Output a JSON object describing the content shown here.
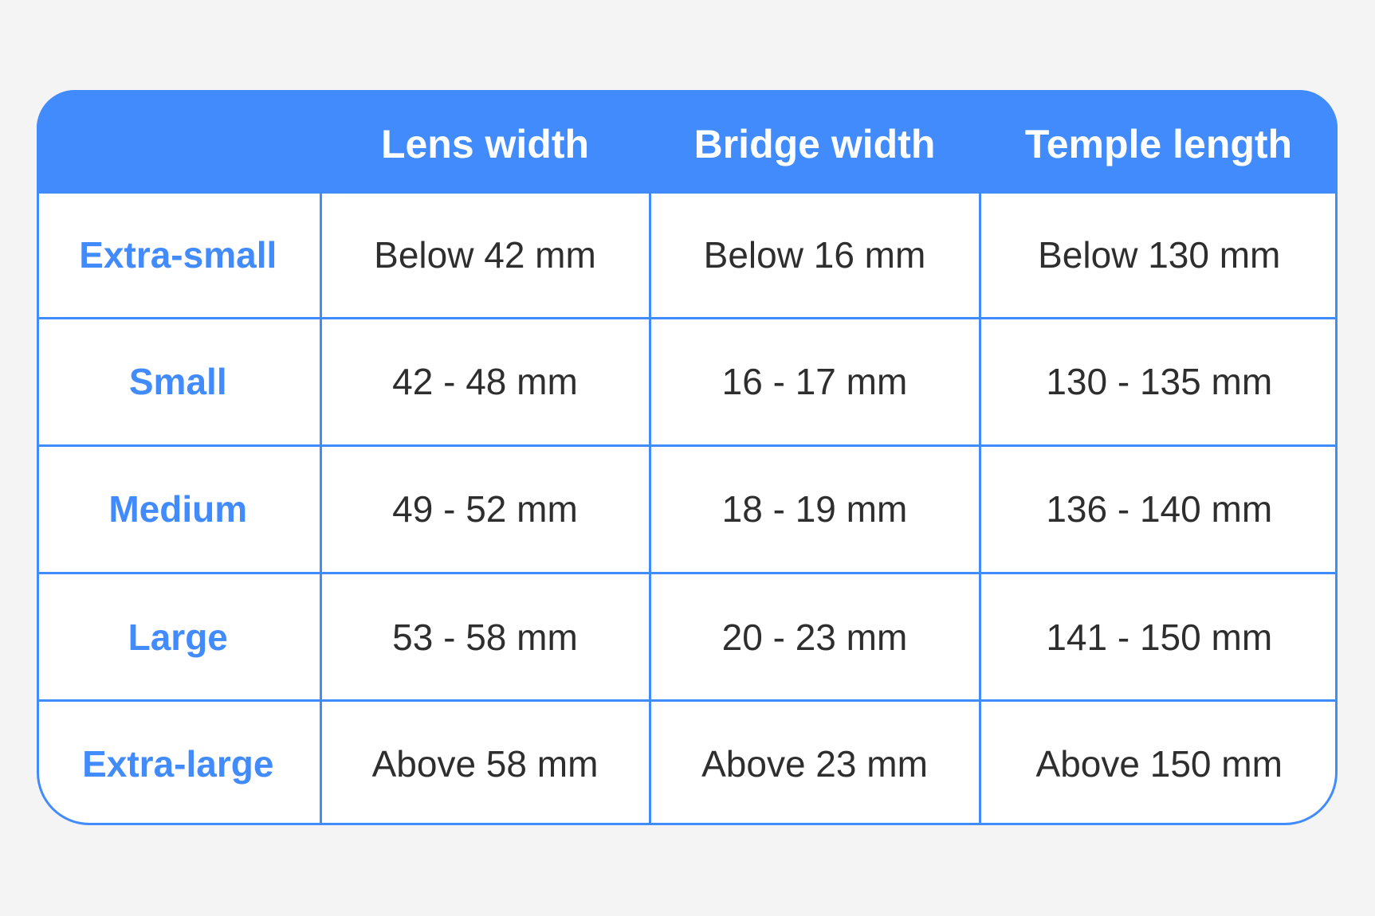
{
  "colors": {
    "accent": "#428bfc",
    "text": "#2e2e2e",
    "background": "#f4f4f4"
  },
  "table": {
    "headers": [
      "",
      "Lens width",
      "Bridge width",
      "Temple length"
    ],
    "rows": [
      {
        "size": "Extra-small",
        "lens": "Below 42 mm",
        "bridge": "Below 16 mm",
        "temple": "Below 130 mm"
      },
      {
        "size": "Small",
        "lens": "42 - 48 mm",
        "bridge": "16 - 17 mm",
        "temple": "130 - 135 mm"
      },
      {
        "size": "Medium",
        "lens": "49 - 52 mm",
        "bridge": "18 - 19 mm",
        "temple": "136 - 140 mm"
      },
      {
        "size": "Large",
        "lens": "53 - 58 mm",
        "bridge": "20 - 23 mm",
        "temple": "141 - 150 mm"
      },
      {
        "size": "Extra-large",
        "lens": "Above 58 mm",
        "bridge": "Above 23 mm",
        "temple": "Above 150 mm"
      }
    ]
  }
}
